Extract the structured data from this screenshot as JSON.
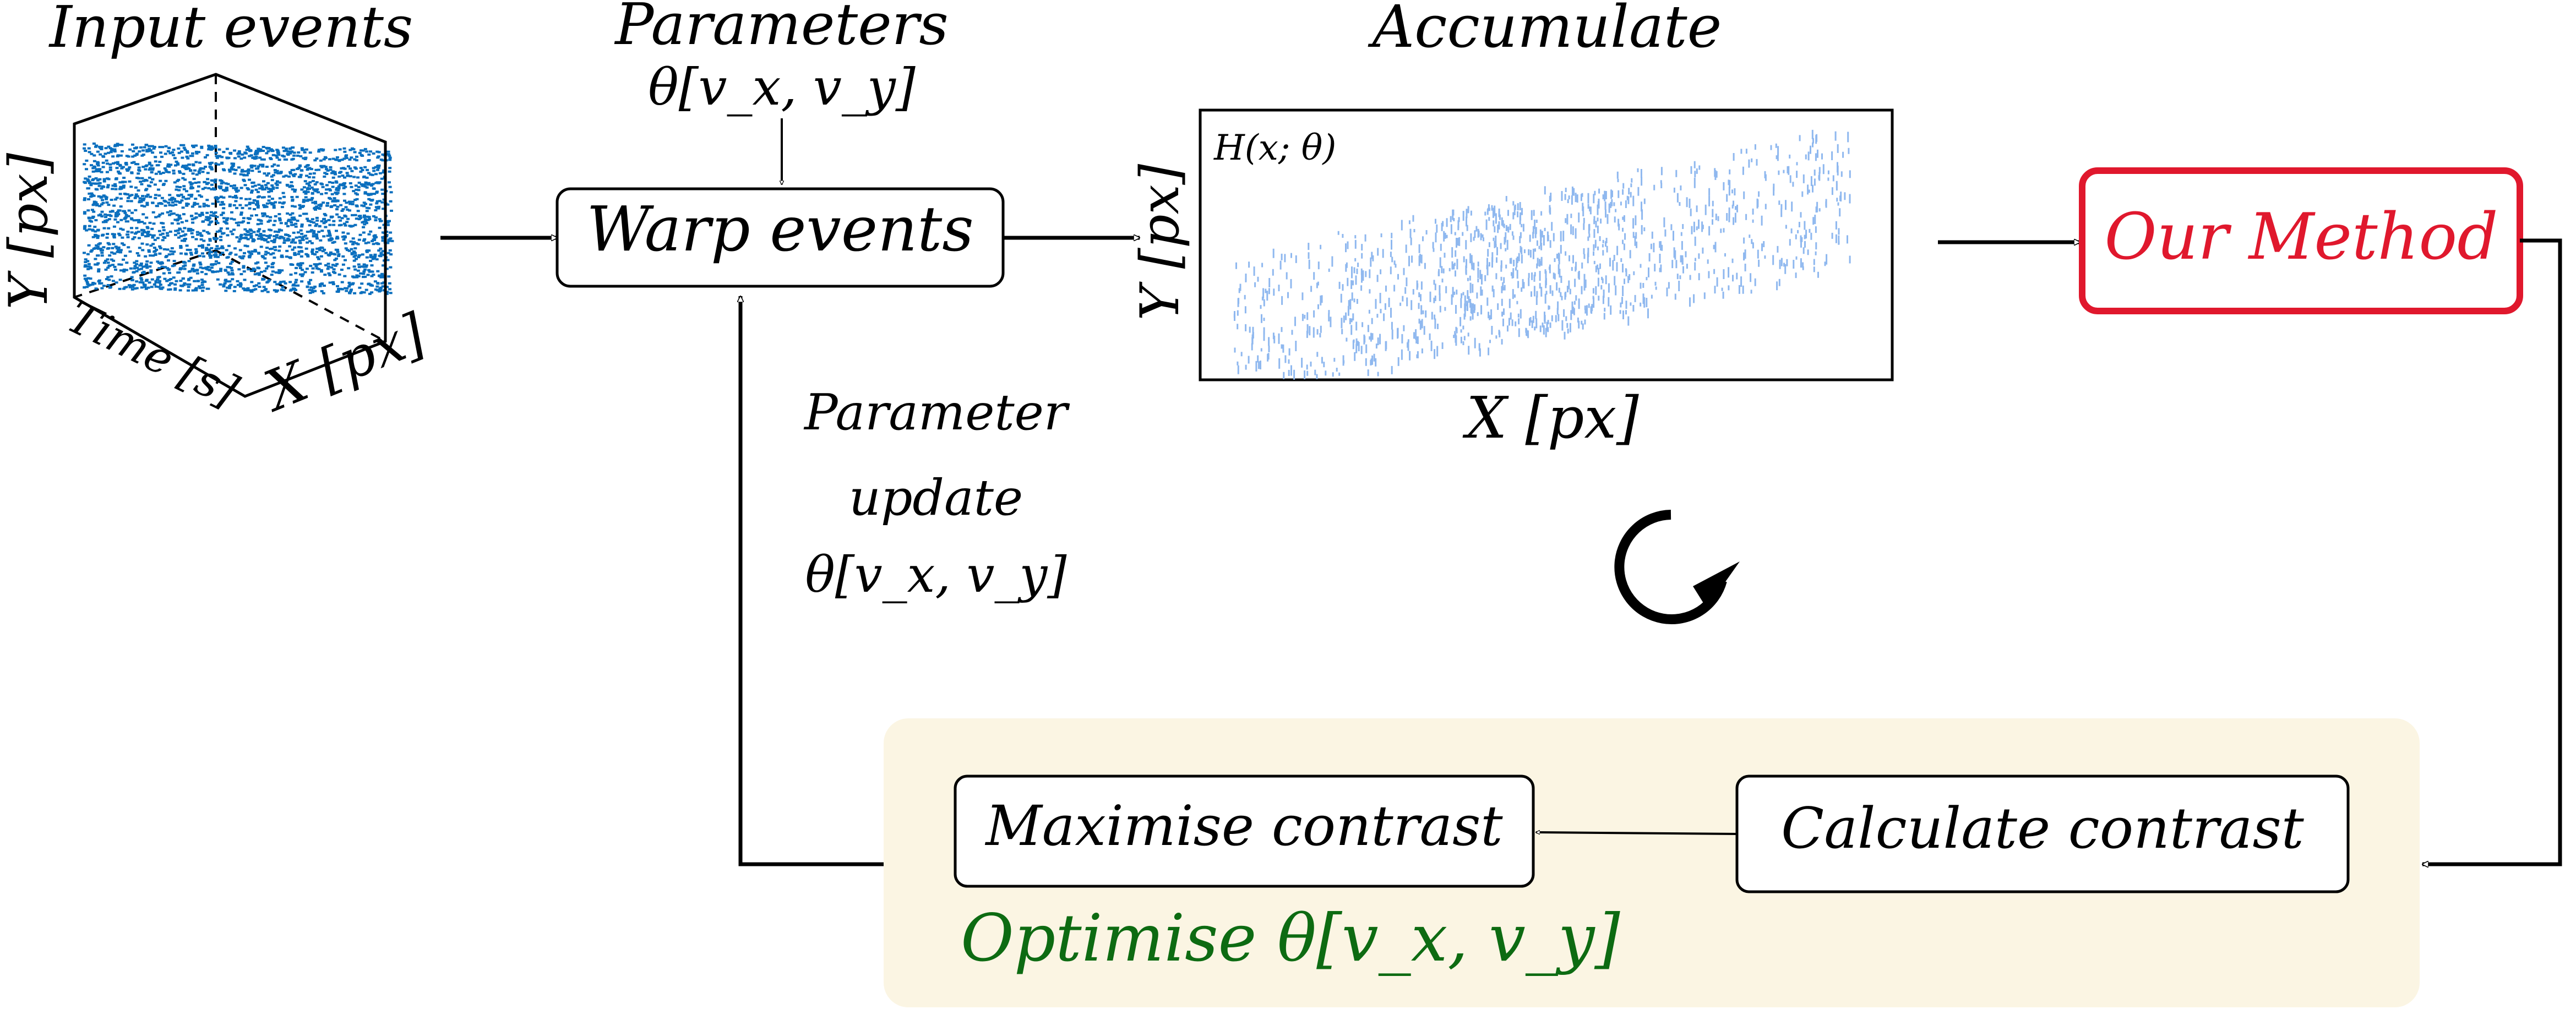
{
  "labels": {
    "input_events": "Input events",
    "parameters": "Parameters",
    "parameters_sub": "θ[v_x, v_y]",
    "accumulate": "Accumulate",
    "warp_events": "Warp events",
    "hist_label": "H(x; θ)",
    "y_axis": "Y [px]",
    "x_axis": "X [px]",
    "cube_y_axis": "Y [px]",
    "cube_time_axis": "Time [s]",
    "cube_x_axis": "X [px]",
    "our_method": "Our Method",
    "param_update_1": "Parameter",
    "param_update_2": "update",
    "param_update_3": "θ[v_x, v_y]",
    "maximise_contrast": "Maximise contrast",
    "calculate_contrast": "Calculate contrast",
    "optimise": "Optimise θ[v_x, v_y]"
  },
  "icons": {
    "loop": "rotate-cw-icon"
  },
  "colors": {
    "our_method": "#e0182d",
    "optimise_text": "#0d6b12",
    "optimise_bg": "#fbf5e3",
    "scatter": "#0a6fbe",
    "histogram": "#8fb8ef"
  }
}
